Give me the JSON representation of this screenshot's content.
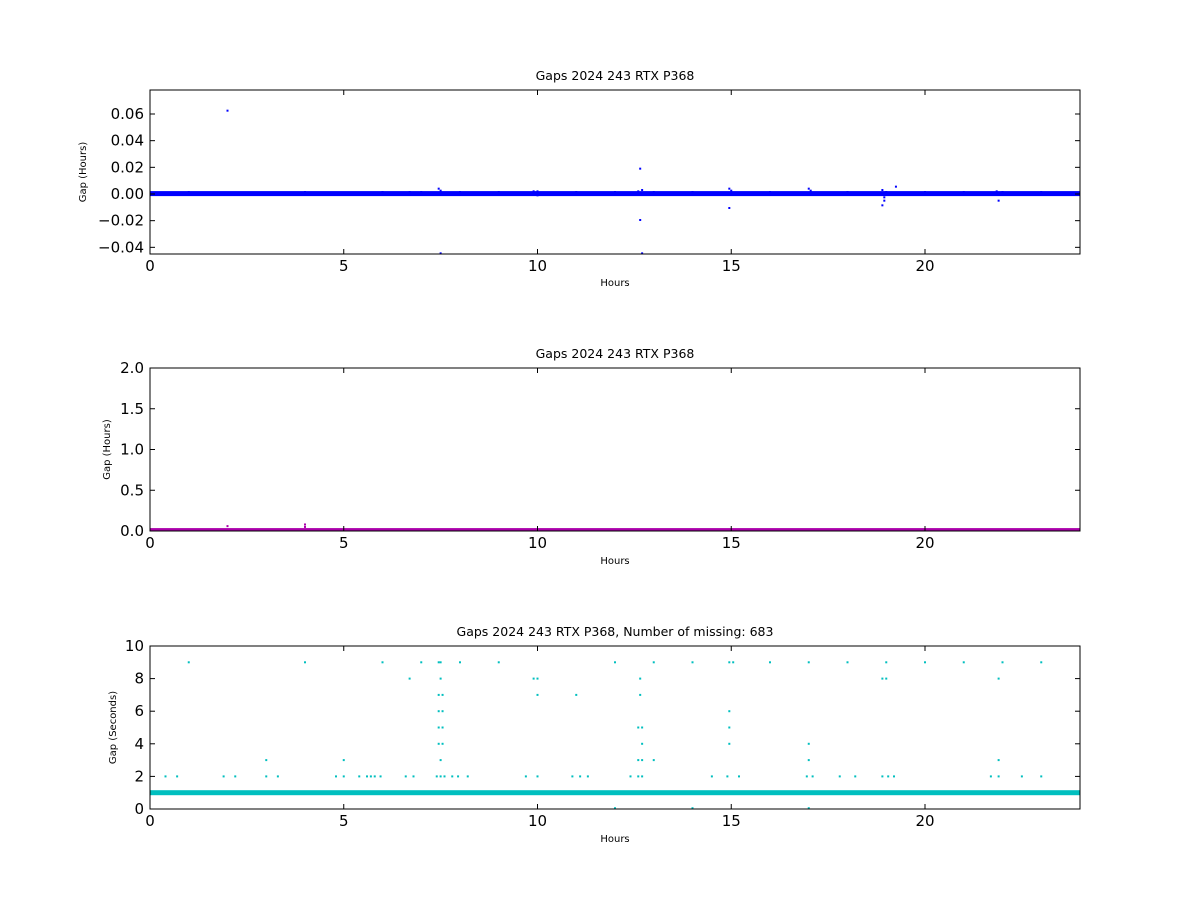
{
  "chart_data": [
    {
      "type": "scatter",
      "title": "Gaps 2024 243 RTX  P368",
      "xlabel": "Hours",
      "ylabel": "Gap (Hours)",
      "xlim": [
        0,
        24
      ],
      "ylim": [
        -0.045,
        0.078
      ],
      "xticks": [
        0,
        5,
        10,
        15,
        20
      ],
      "xtick_labels": [
        "0",
        "5",
        "10",
        "15",
        "20"
      ],
      "yticks": [
        -0.04,
        -0.02,
        0.0,
        0.02,
        0.04,
        0.06
      ],
      "ytick_labels": [
        "−0.04",
        "−0.02",
        "0.00",
        "0.02",
        "0.04",
        "0.06"
      ],
      "grid": false,
      "color": "#0000ff",
      "baseline": {
        "x_range": [
          0,
          24
        ],
        "y": 0.0003
      },
      "points": [
        {
          "x": 2.0,
          "y": 0.0625
        },
        {
          "x": 4.0,
          "y": 0.0015
        },
        {
          "x": 1.0,
          "y": 0.0015
        },
        {
          "x": 6.0,
          "y": 0.0015
        },
        {
          "x": 6.7,
          "y": 0.0015
        },
        {
          "x": 7.0,
          "y": 0.0015
        },
        {
          "x": 7.45,
          "y": 0.004
        },
        {
          "x": 7.5,
          "y": 0.0025
        },
        {
          "x": 7.5,
          "y": -0.0445
        },
        {
          "x": 8.0,
          "y": 0.0015
        },
        {
          "x": 9.0,
          "y": 0.0015
        },
        {
          "x": 9.9,
          "y": 0.002
        },
        {
          "x": 10.0,
          "y": 0.002
        },
        {
          "x": 10.0,
          "y": -0.001
        },
        {
          "x": 11.0,
          "y": 0.0015
        },
        {
          "x": 12.0,
          "y": 0.0015
        },
        {
          "x": 12.6,
          "y": 0.002
        },
        {
          "x": 12.65,
          "y": 0.019
        },
        {
          "x": 12.7,
          "y": 0.003
        },
        {
          "x": 12.65,
          "y": -0.0195
        },
        {
          "x": 12.7,
          "y": -0.0445
        },
        {
          "x": 13.0,
          "y": 0.0015
        },
        {
          "x": 14.0,
          "y": 0.0015
        },
        {
          "x": 14.95,
          "y": 0.004
        },
        {
          "x": 15.0,
          "y": 0.0025
        },
        {
          "x": 14.95,
          "y": -0.0105
        },
        {
          "x": 16.0,
          "y": 0.0015
        },
        {
          "x": 17.0,
          "y": 0.004
        },
        {
          "x": 17.05,
          "y": 0.0025
        },
        {
          "x": 18.0,
          "y": 0.0015
        },
        {
          "x": 18.9,
          "y": 0.003
        },
        {
          "x": 18.9,
          "y": -0.0085
        },
        {
          "x": 18.95,
          "y": -0.005
        },
        {
          "x": 18.95,
          "y": -0.0025
        },
        {
          "x": 19.0,
          "y": 0.0015
        },
        {
          "x": 19.25,
          "y": 0.0055
        },
        {
          "x": 20.0,
          "y": 0.0015
        },
        {
          "x": 21.0,
          "y": 0.0015
        },
        {
          "x": 21.85,
          "y": 0.002
        },
        {
          "x": 21.9,
          "y": -0.005
        },
        {
          "x": 22.0,
          "y": 0.0015
        },
        {
          "x": 23.0,
          "y": 0.0015
        }
      ]
    },
    {
      "type": "scatter",
      "title": "Gaps 2024 243 RTX  P368",
      "xlabel": "Hours",
      "ylabel": "Gap (Hours)",
      "xlim": [
        0,
        24
      ],
      "ylim": [
        0,
        2.0
      ],
      "xticks": [
        0,
        5,
        10,
        15,
        20
      ],
      "xtick_labels": [
        "0",
        "5",
        "10",
        "15",
        "20"
      ],
      "yticks": [
        0.0,
        0.5,
        1.0,
        1.5,
        2.0
      ],
      "ytick_labels": [
        "0.0",
        "0.5",
        "1.0",
        "1.5",
        "2.0"
      ],
      "grid": false,
      "color": "#aa00aa",
      "baseline": {
        "x_range": [
          0,
          24
        ],
        "y": 0.005
      },
      "points": [
        {
          "x": 2.0,
          "y": 0.06
        },
        {
          "x": 4.0,
          "y": 0.08
        },
        {
          "x": 4.0,
          "y": 0.05
        }
      ]
    },
    {
      "type": "scatter",
      "title": "Gaps 2024 243 RTX  P368, Number of missing: 683",
      "xlabel": "Hours",
      "ylabel": "Gap (Seconds)",
      "xlim": [
        0,
        24
      ],
      "ylim": [
        0,
        10
      ],
      "xticks": [
        0,
        5,
        10,
        15,
        20
      ],
      "xtick_labels": [
        "0",
        "5",
        "10",
        "15",
        "20"
      ],
      "yticks": [
        0,
        2,
        4,
        6,
        8,
        10
      ],
      "ytick_labels": [
        "0",
        "2",
        "4",
        "6",
        "8",
        "10"
      ],
      "grid": false,
      "color": "#00bfbf",
      "baseline": {
        "x_range": [
          0,
          24
        ],
        "y": 1.0
      },
      "points": [
        {
          "x": 1.0,
          "y": 9
        },
        {
          "x": 4.0,
          "y": 9
        },
        {
          "x": 6.0,
          "y": 9
        },
        {
          "x": 7.0,
          "y": 9
        },
        {
          "x": 7.45,
          "y": 9
        },
        {
          "x": 7.5,
          "y": 9
        },
        {
          "x": 8.0,
          "y": 9
        },
        {
          "x": 9.0,
          "y": 9
        },
        {
          "x": 12.0,
          "y": 9
        },
        {
          "x": 13.0,
          "y": 9
        },
        {
          "x": 14.0,
          "y": 9
        },
        {
          "x": 14.95,
          "y": 9
        },
        {
          "x": 15.05,
          "y": 9
        },
        {
          "x": 16.0,
          "y": 9
        },
        {
          "x": 17.0,
          "y": 9
        },
        {
          "x": 18.0,
          "y": 9
        },
        {
          "x": 19.0,
          "y": 9
        },
        {
          "x": 20.0,
          "y": 9
        },
        {
          "x": 21.0,
          "y": 9
        },
        {
          "x": 22.0,
          "y": 9
        },
        {
          "x": 23.0,
          "y": 9
        },
        {
          "x": 6.7,
          "y": 8
        },
        {
          "x": 7.5,
          "y": 8
        },
        {
          "x": 9.9,
          "y": 8
        },
        {
          "x": 10.0,
          "y": 8
        },
        {
          "x": 12.65,
          "y": 8
        },
        {
          "x": 18.9,
          "y": 8
        },
        {
          "x": 19.0,
          "y": 8
        },
        {
          "x": 21.9,
          "y": 8
        },
        {
          "x": 7.45,
          "y": 7
        },
        {
          "x": 7.55,
          "y": 7
        },
        {
          "x": 10.0,
          "y": 7
        },
        {
          "x": 11.0,
          "y": 7
        },
        {
          "x": 12.65,
          "y": 7
        },
        {
          "x": 7.45,
          "y": 6
        },
        {
          "x": 7.55,
          "y": 6
        },
        {
          "x": 14.95,
          "y": 6
        },
        {
          "x": 7.45,
          "y": 5
        },
        {
          "x": 7.55,
          "y": 5
        },
        {
          "x": 12.6,
          "y": 5
        },
        {
          "x": 12.7,
          "y": 5
        },
        {
          "x": 14.95,
          "y": 5
        },
        {
          "x": 7.45,
          "y": 4
        },
        {
          "x": 7.55,
          "y": 4
        },
        {
          "x": 12.7,
          "y": 4
        },
        {
          "x": 14.95,
          "y": 4
        },
        {
          "x": 17.0,
          "y": 4
        },
        {
          "x": 3.0,
          "y": 3
        },
        {
          "x": 5.0,
          "y": 3
        },
        {
          "x": 7.5,
          "y": 3
        },
        {
          "x": 12.6,
          "y": 3
        },
        {
          "x": 12.7,
          "y": 3
        },
        {
          "x": 13.0,
          "y": 3
        },
        {
          "x": 17.0,
          "y": 3
        },
        {
          "x": 21.9,
          "y": 3
        },
        {
          "x": 0.4,
          "y": 2
        },
        {
          "x": 0.7,
          "y": 2
        },
        {
          "x": 1.9,
          "y": 2
        },
        {
          "x": 2.2,
          "y": 2
        },
        {
          "x": 3.0,
          "y": 2
        },
        {
          "x": 3.3,
          "y": 2
        },
        {
          "x": 4.8,
          "y": 2
        },
        {
          "x": 5.0,
          "y": 2
        },
        {
          "x": 5.4,
          "y": 2
        },
        {
          "x": 5.6,
          "y": 2
        },
        {
          "x": 5.7,
          "y": 2
        },
        {
          "x": 5.8,
          "y": 2
        },
        {
          "x": 5.95,
          "y": 2
        },
        {
          "x": 6.6,
          "y": 2
        },
        {
          "x": 6.8,
          "y": 2
        },
        {
          "x": 7.4,
          "y": 2
        },
        {
          "x": 7.5,
          "y": 2
        },
        {
          "x": 7.6,
          "y": 2
        },
        {
          "x": 7.8,
          "y": 2
        },
        {
          "x": 7.95,
          "y": 2
        },
        {
          "x": 8.2,
          "y": 2
        },
        {
          "x": 9.7,
          "y": 2
        },
        {
          "x": 10.0,
          "y": 2
        },
        {
          "x": 10.9,
          "y": 2
        },
        {
          "x": 11.1,
          "y": 2
        },
        {
          "x": 11.3,
          "y": 2
        },
        {
          "x": 12.4,
          "y": 2
        },
        {
          "x": 12.6,
          "y": 2
        },
        {
          "x": 12.7,
          "y": 2
        },
        {
          "x": 14.5,
          "y": 2
        },
        {
          "x": 14.9,
          "y": 2
        },
        {
          "x": 15.2,
          "y": 2
        },
        {
          "x": 16.95,
          "y": 2
        },
        {
          "x": 17.1,
          "y": 2
        },
        {
          "x": 17.8,
          "y": 2
        },
        {
          "x": 18.2,
          "y": 2
        },
        {
          "x": 18.9,
          "y": 2
        },
        {
          "x": 19.05,
          "y": 2
        },
        {
          "x": 19.2,
          "y": 2
        },
        {
          "x": 21.7,
          "y": 2
        },
        {
          "x": 21.9,
          "y": 2
        },
        {
          "x": 22.5,
          "y": 2
        },
        {
          "x": 23.0,
          "y": 2
        },
        {
          "x": 12.0,
          "y": 0.05
        },
        {
          "x": 14.0,
          "y": 0.05
        },
        {
          "x": 17.0,
          "y": 0.05
        }
      ]
    }
  ]
}
